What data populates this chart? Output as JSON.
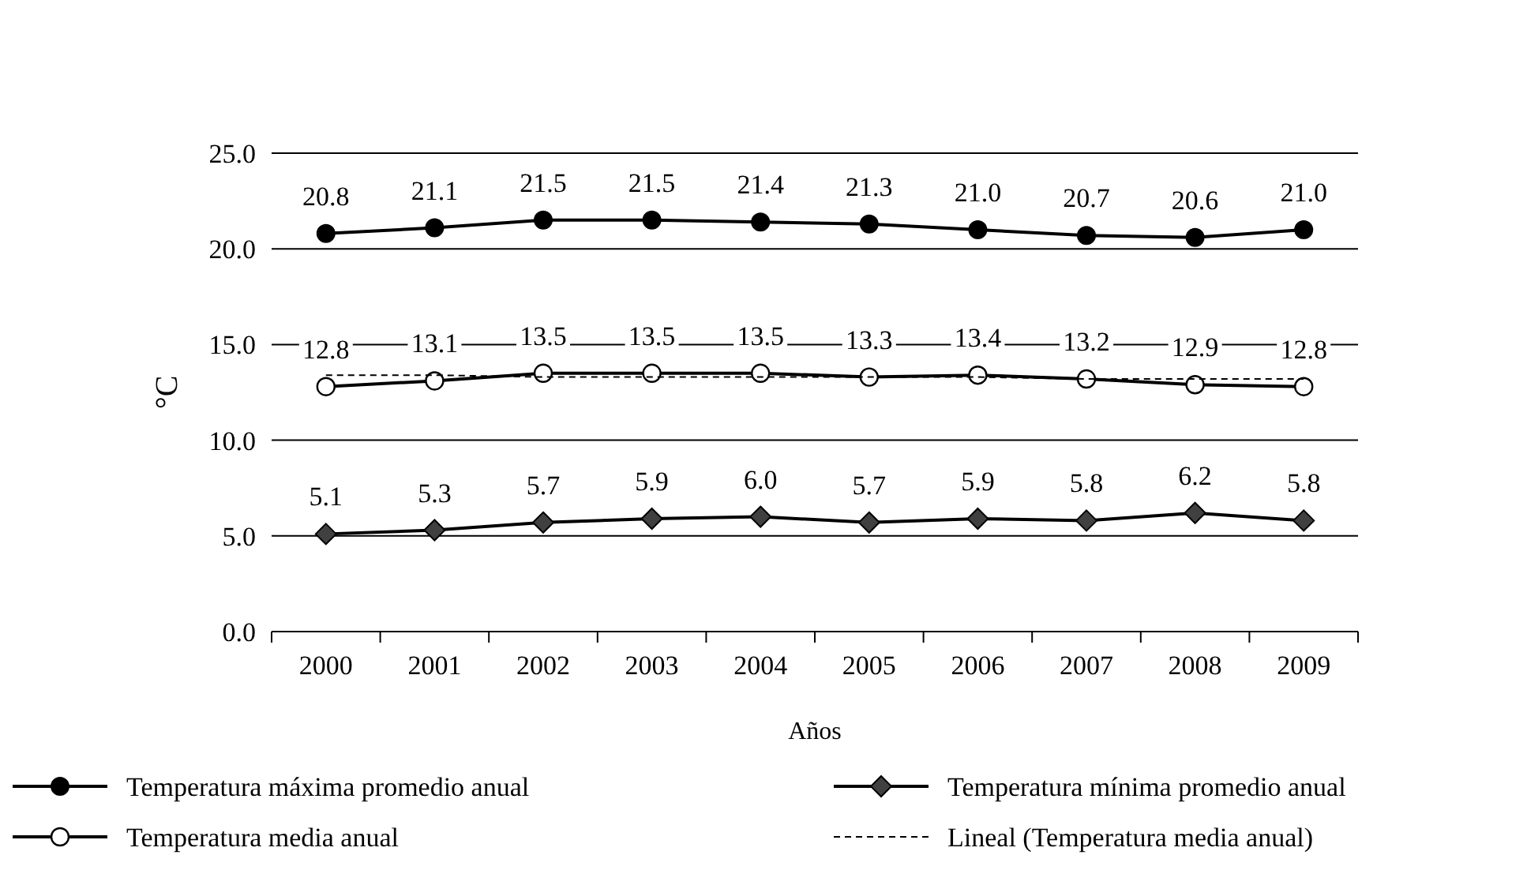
{
  "chart_data": {
    "type": "line",
    "xlabel": "Años",
    "ylabel": "°C",
    "categories": [
      "2000",
      "2001",
      "2002",
      "2003",
      "2004",
      "2005",
      "2006",
      "2007",
      "2008",
      "2009"
    ],
    "series": [
      {
        "name": "Temperatura máxima promedio anual",
        "color": "#000000",
        "marker": "circle",
        "values": [
          20.8,
          21.1,
          21.5,
          21.5,
          21.4,
          21.3,
          21.0,
          20.7,
          20.6,
          21.0
        ],
        "value_labels": [
          "20.8",
          "21.1",
          "21.5",
          "21.5",
          "21.4",
          "21.3",
          "21.0",
          "20.7",
          "20.6",
          "21.0"
        ]
      },
      {
        "name": "Temperatura mínima promedio anual",
        "color": "#000000",
        "marker": "diamond",
        "values": [
          5.1,
          5.3,
          5.7,
          5.9,
          6.0,
          5.7,
          5.9,
          5.8,
          6.2,
          5.8
        ],
        "value_labels": [
          "5.1",
          "5.3",
          "5.7",
          "5.9",
          "6.0",
          "5.7",
          "5.9",
          "5.8",
          "6.2",
          "5.8"
        ]
      },
      {
        "name": "Temperatura media anual",
        "color": "#000000",
        "marker": "circle_open",
        "values": [
          12.8,
          13.1,
          13.5,
          13.5,
          13.5,
          13.3,
          13.4,
          13.2,
          12.9,
          12.8
        ],
        "value_labels": [
          "12.8",
          "13.1",
          "13.5",
          "13.5",
          "13.5",
          "13.3",
          "13.4",
          "13.2",
          "12.9",
          "12.8"
        ]
      },
      {
        "name": "Lineal (Temperatura media anual)",
        "color": "#000000",
        "marker": "none",
        "line_style": "dashed",
        "values": [
          13.4,
          13.4,
          13.3,
          13.3,
          13.3,
          13.3,
          13.3,
          13.2,
          13.2,
          13.2
        ]
      }
    ],
    "ylim": [
      0,
      25
    ],
    "yticks": [
      {
        "value": 0,
        "label": "0.0"
      },
      {
        "value": 5,
        "label": "5.0"
      },
      {
        "value": 10,
        "label": "10.0"
      },
      {
        "value": 15,
        "label": "15.0"
      },
      {
        "value": 20,
        "label": "20.0"
      },
      {
        "value": 25,
        "label": "25.0"
      }
    ],
    "grid": "y",
    "legend": "bottom"
  }
}
